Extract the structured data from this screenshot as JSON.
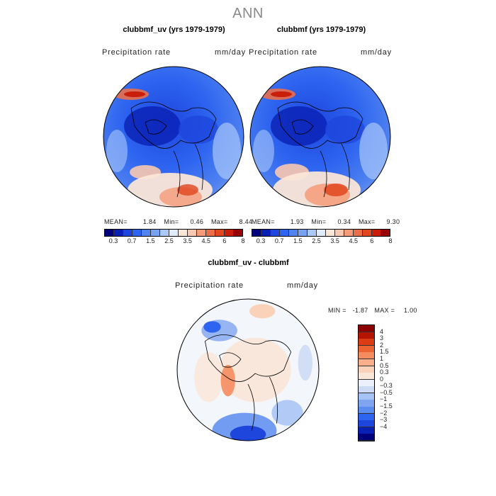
{
  "title": "ANN",
  "panels": [
    {
      "title": "clubbmf_uv (yrs 1979-1979)",
      "variable": "Precipitation rate",
      "units": "mm/day",
      "stats": {
        "mean_label": "MEAN=",
        "mean": "1.84",
        "min_label": "Min=",
        "min": "0.46",
        "max_label": "Max=",
        "max": "8.44"
      }
    },
    {
      "title": "clubbmf (yrs 1979-1979)",
      "variable": "Precipitation rate",
      "units": "mm/day",
      "stats": {
        "mean_label": "MEAN=",
        "mean": "1.93",
        "min_label": "Min=",
        "min": "0.34",
        "max_label": "Max=",
        "max": "9.30"
      }
    },
    {
      "title": "clubbmf_uv - clubbmf",
      "variable": "Precipitation rate",
      "units": "mm/day",
      "stats": {
        "min_label": "MIN =",
        "min": "-1.87",
        "max_label": "MAX =",
        "max": "1.00"
      }
    }
  ],
  "colorbar_top": {
    "colors": [
      "#00007f",
      "#0a20b4",
      "#1e46dc",
      "#2d64f0",
      "#5082f0",
      "#78a0f0",
      "#aac8fa",
      "#e1ebfa",
      "#fae6d7",
      "#fac8af",
      "#f59b78",
      "#eb6e4b",
      "#e1461e",
      "#c81e0a",
      "#9b0000"
    ],
    "labels": [
      "0.3",
      "0.7",
      "1.5",
      "2.5",
      "3.5",
      "4.5",
      "6",
      "8"
    ]
  },
  "colorbar_diff": {
    "colors": [
      "#00007f",
      "#0a20b4",
      "#1e46dc",
      "#2d64f0",
      "#5a8cf0",
      "#7fa5f0",
      "#a5c3f5",
      "#cddcf5",
      "#ebf0fa",
      "#fae6d7",
      "#fad2b9",
      "#faaf8c",
      "#f58c5f",
      "#eb6432",
      "#dc3c14",
      "#b41400",
      "#8c0000"
    ],
    "labels": [
      "4",
      "3",
      "2",
      "1.5",
      "1",
      "0.5",
      "0.3",
      "0",
      "−0.3",
      "−0.5",
      "−1",
      "−1.5",
      "−2",
      "−3",
      "−4"
    ]
  }
}
